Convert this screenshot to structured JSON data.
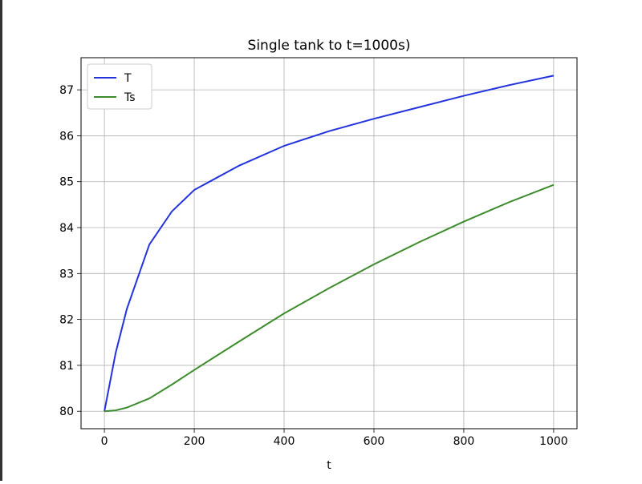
{
  "chart_data": {
    "type": "line",
    "title": "Single tank to t=1000s)",
    "x_label": "t",
    "x": [
      0,
      25,
      50,
      100,
      150,
      200,
      300,
      400,
      500,
      600,
      700,
      800,
      900,
      1000
    ],
    "series": [
      {
        "name": "T",
        "color": "#2233dd",
        "values": [
          80,
          81.27,
          82.23,
          83.63,
          84.35,
          84.82,
          85.35,
          85.78,
          86.1,
          86.37,
          86.62,
          86.87,
          87.1,
          87.31
        ]
      },
      {
        "name": "Ts",
        "color": "#3c8c2c",
        "values": [
          80,
          80.02,
          80.08,
          80.28,
          80.58,
          80.9,
          81.52,
          82.13,
          82.68,
          83.2,
          83.68,
          84.13,
          84.55,
          84.93
        ]
      }
    ],
    "xlim": [
      -52,
      1052
    ],
    "ylim": [
      79.62,
      87.7
    ],
    "xticks": [
      0,
      200,
      400,
      600,
      800,
      1000
    ],
    "yticks": [
      80,
      81,
      82,
      83,
      84,
      85,
      86,
      87
    ],
    "grid": true,
    "legend": "upper left"
  }
}
